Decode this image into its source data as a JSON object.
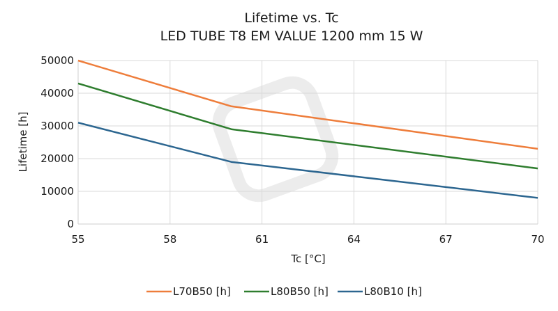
{
  "chart_data": {
    "type": "line",
    "title": "Lifetime vs. Tc",
    "subtitle": "LED TUBE T8 EM VALUE 1200 mm 15 W",
    "xlabel": "Tc [°C]",
    "ylabel": "Lifetime [h]",
    "xlim": [
      55,
      70
    ],
    "ylim": [
      0,
      50000
    ],
    "xticks": [
      55,
      58,
      61,
      64,
      67,
      70
    ],
    "yticks": [
      0,
      10000,
      20000,
      30000,
      40000,
      50000
    ],
    "grid": true,
    "legend_position": "bottom",
    "x": [
      55,
      60,
      70
    ],
    "series": [
      {
        "name": "L70B50 [h]",
        "color": "#ee7d3b",
        "values": [
          50000,
          36000,
          23000
        ]
      },
      {
        "name": "L80B50 [h]",
        "color": "#2e7d2e",
        "values": [
          43000,
          29000,
          17000
        ]
      },
      {
        "name": "L80B10 [h]",
        "color": "#2c6690",
        "values": [
          31000,
          19000,
          8000
        ]
      }
    ]
  }
}
